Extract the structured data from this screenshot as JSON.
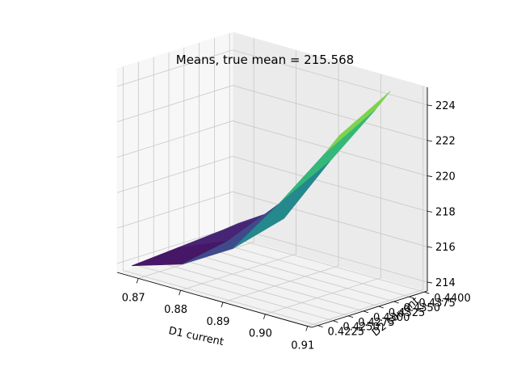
{
  "chart_data": {
    "type": "surface3d",
    "title": "Means, true mean = 215.568",
    "xlabel": "D1 current",
    "ylabel": "D2 current",
    "zlabel": "",
    "xticks": [
      "0.87",
      "0.88",
      "0.89",
      "0.90",
      "0.91"
    ],
    "yticks": [
      "0.4225",
      "0.4250",
      "0.4275",
      "0.4300",
      "0.4325",
      "0.4350",
      "0.4375",
      "0.4400"
    ],
    "zticks": [
      "214",
      "216",
      "218",
      "220",
      "222",
      "224"
    ],
    "xlim": [
      0.865,
      0.911
    ],
    "ylim": [
      0.4215,
      0.4405
    ],
    "zlim": [
      213.5,
      225.0
    ],
    "grid": true,
    "colormap": "viridis",
    "surface": {
      "x": [
        0.867,
        0.879,
        0.891,
        0.903
      ],
      "y": [
        0.4225,
        0.43,
        0.4375,
        0.44
      ],
      "z": [
        [
          213.9,
          214.1,
          214.3,
          214.4
        ],
        [
          214.8,
          215.3,
          216.0,
          216.2
        ],
        [
          216.5,
          218.2,
          220.2,
          221.0
        ],
        [
          219.0,
          221.4,
          223.5,
          224.3
        ]
      ]
    }
  }
}
